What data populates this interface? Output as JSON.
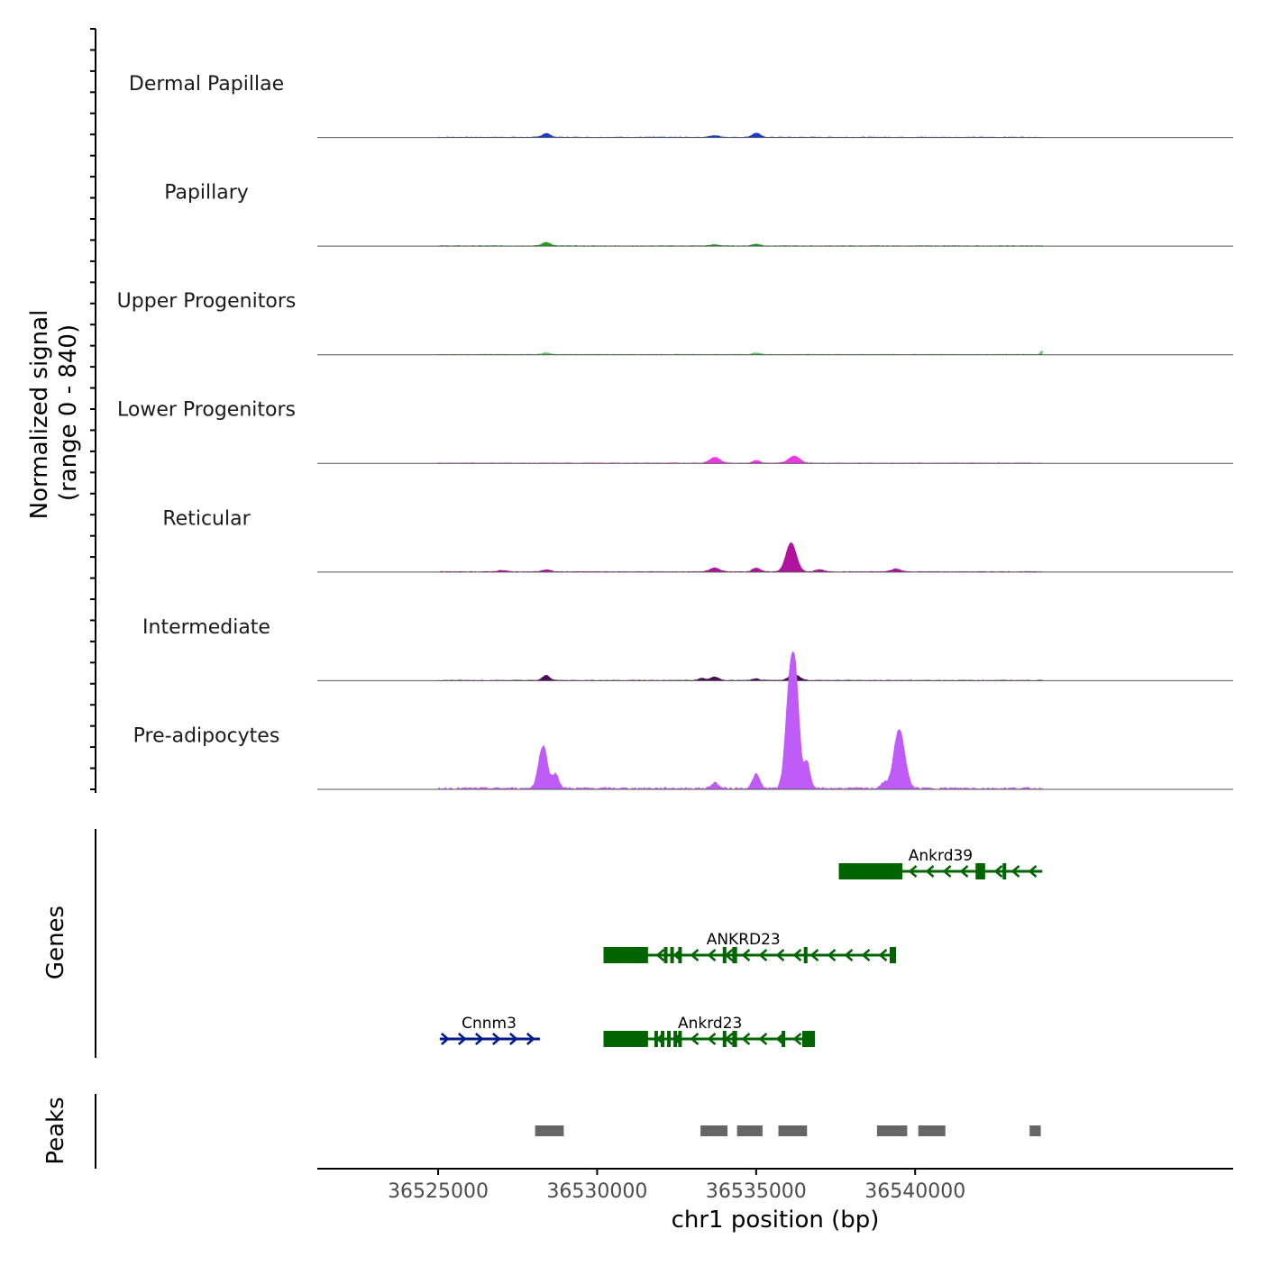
{
  "chart_data": {
    "type": "area",
    "title": "",
    "ylabel_line1": "Normalized signal",
    "ylabel_line2": "(range 0 - 840)",
    "yrange": [
      0,
      840
    ],
    "xlabel": "chr1 position (bp)",
    "xlim": [
      36521200,
      36550000
    ],
    "xticks": [
      {
        "value": 36525000,
        "label": "36525000"
      },
      {
        "value": 36530000,
        "label": "36530000"
      },
      {
        "value": 36535000,
        "label": "36535000"
      },
      {
        "value": 36540000,
        "label": "36540000"
      }
    ],
    "signal_extent": [
      36525000,
      36544000
    ],
    "tracks": [
      {
        "name": "Dermal Papillae",
        "color": "#1a3ccc",
        "peaks": [
          [
            36528400,
            30,
            120
          ],
          [
            36533700,
            12,
            150
          ],
          [
            36535000,
            32,
            120
          ]
        ]
      },
      {
        "name": "Papillary",
        "color": "#22a022",
        "peaks": [
          [
            36528400,
            28,
            120
          ],
          [
            36533700,
            8,
            150
          ],
          [
            36535000,
            14,
            120
          ]
        ]
      },
      {
        "name": "Upper Progenitors",
        "color": "#5ecb5e",
        "peaks": [
          [
            36528400,
            12,
            120
          ],
          [
            36535000,
            12,
            120
          ],
          [
            36544000,
            28,
            60
          ]
        ]
      },
      {
        "name": "Lower Progenitors",
        "color": "#ee38e6",
        "peaks": [
          [
            36533700,
            45,
            160
          ],
          [
            36535000,
            22,
            110
          ],
          [
            36536200,
            55,
            170
          ]
        ]
      },
      {
        "name": "Reticular",
        "color": "#b0149f",
        "peaks": [
          [
            36527000,
            10,
            150
          ],
          [
            36528400,
            16,
            130
          ],
          [
            36533700,
            30,
            150
          ],
          [
            36535000,
            30,
            120
          ],
          [
            36536100,
            225,
            160
          ],
          [
            36537000,
            18,
            120
          ],
          [
            36539400,
            22,
            150
          ]
        ]
      },
      {
        "name": "Intermediate",
        "color": "#4a0a58",
        "peaks": [
          [
            36528400,
            40,
            110
          ],
          [
            36533300,
            18,
            100
          ],
          [
            36533700,
            28,
            120
          ],
          [
            36535000,
            12,
            110
          ],
          [
            36536200,
            45,
            170
          ]
        ]
      },
      {
        "name": "Pre-adipocytes",
        "color": "#bf5cf7",
        "peaks": [
          [
            36528300,
            330,
            140
          ],
          [
            36528700,
            110,
            100
          ],
          [
            36535000,
            110,
            110
          ],
          [
            36536050,
            740,
            130
          ],
          [
            36536250,
            720,
            120
          ],
          [
            36536600,
            210,
            90
          ],
          [
            36539500,
            460,
            170
          ],
          [
            36539000,
            40,
            100
          ],
          [
            36533700,
            45,
            110
          ]
        ]
      }
    ],
    "genes_label": "Genes",
    "genes": [
      {
        "name": "Ankrd39",
        "strand": "-",
        "color": "#006400",
        "row": 0,
        "start": 36537600,
        "end": 36544000,
        "label_pos": 36540800,
        "blocks": [
          [
            36537600,
            36539600
          ],
          [
            36541900,
            36542200
          ],
          [
            36542750,
            36542850
          ]
        ]
      },
      {
        "name": "ANKRD23",
        "strand": "-",
        "color": "#006400",
        "row": 1,
        "start": 36530200,
        "end": 36539400,
        "label_pos": 36534600,
        "blocks": [
          [
            36530200,
            36531600
          ],
          [
            36532100,
            36532150
          ],
          [
            36532300,
            36532350
          ],
          [
            36532550,
            36532650
          ],
          [
            36533950,
            36534050
          ],
          [
            36534250,
            36534400
          ],
          [
            36536500,
            36536550
          ],
          [
            36539200,
            36539400
          ]
        ]
      },
      {
        "name": "Ankrd23",
        "strand": "-",
        "color": "#006400",
        "row": 2,
        "start": 36530200,
        "end": 36536850,
        "label_pos": 36533550,
        "blocks": [
          [
            36530200,
            36531600
          ],
          [
            36531800,
            36531900
          ],
          [
            36532000,
            36532100
          ],
          [
            36532200,
            36532300
          ],
          [
            36532400,
            36532450
          ],
          [
            36532550,
            36532650
          ],
          [
            36533950,
            36534050
          ],
          [
            36534250,
            36534400
          ],
          [
            36535800,
            36535850
          ],
          [
            36536450,
            36536850
          ]
        ]
      },
      {
        "name": "Cnnm3",
        "strand": "+",
        "color": "#001a8c",
        "row": 2,
        "start": 36525050,
        "end": 36528200,
        "label_pos": 36526600,
        "blocks": []
      }
    ],
    "peaks_label": "Peaks",
    "peak_regions": [
      [
        36528050,
        36528950
      ],
      [
        36533250,
        36534100
      ],
      [
        36534400,
        36535200
      ],
      [
        36535700,
        36536600
      ],
      [
        36538800,
        36539750
      ],
      [
        36540100,
        36540950
      ],
      [
        36543600,
        36543950
      ]
    ],
    "colors": {
      "axis": "#000000",
      "tick_label": "#4d4d4d",
      "peak_fill": "#666666",
      "baseline": "#555555"
    }
  }
}
